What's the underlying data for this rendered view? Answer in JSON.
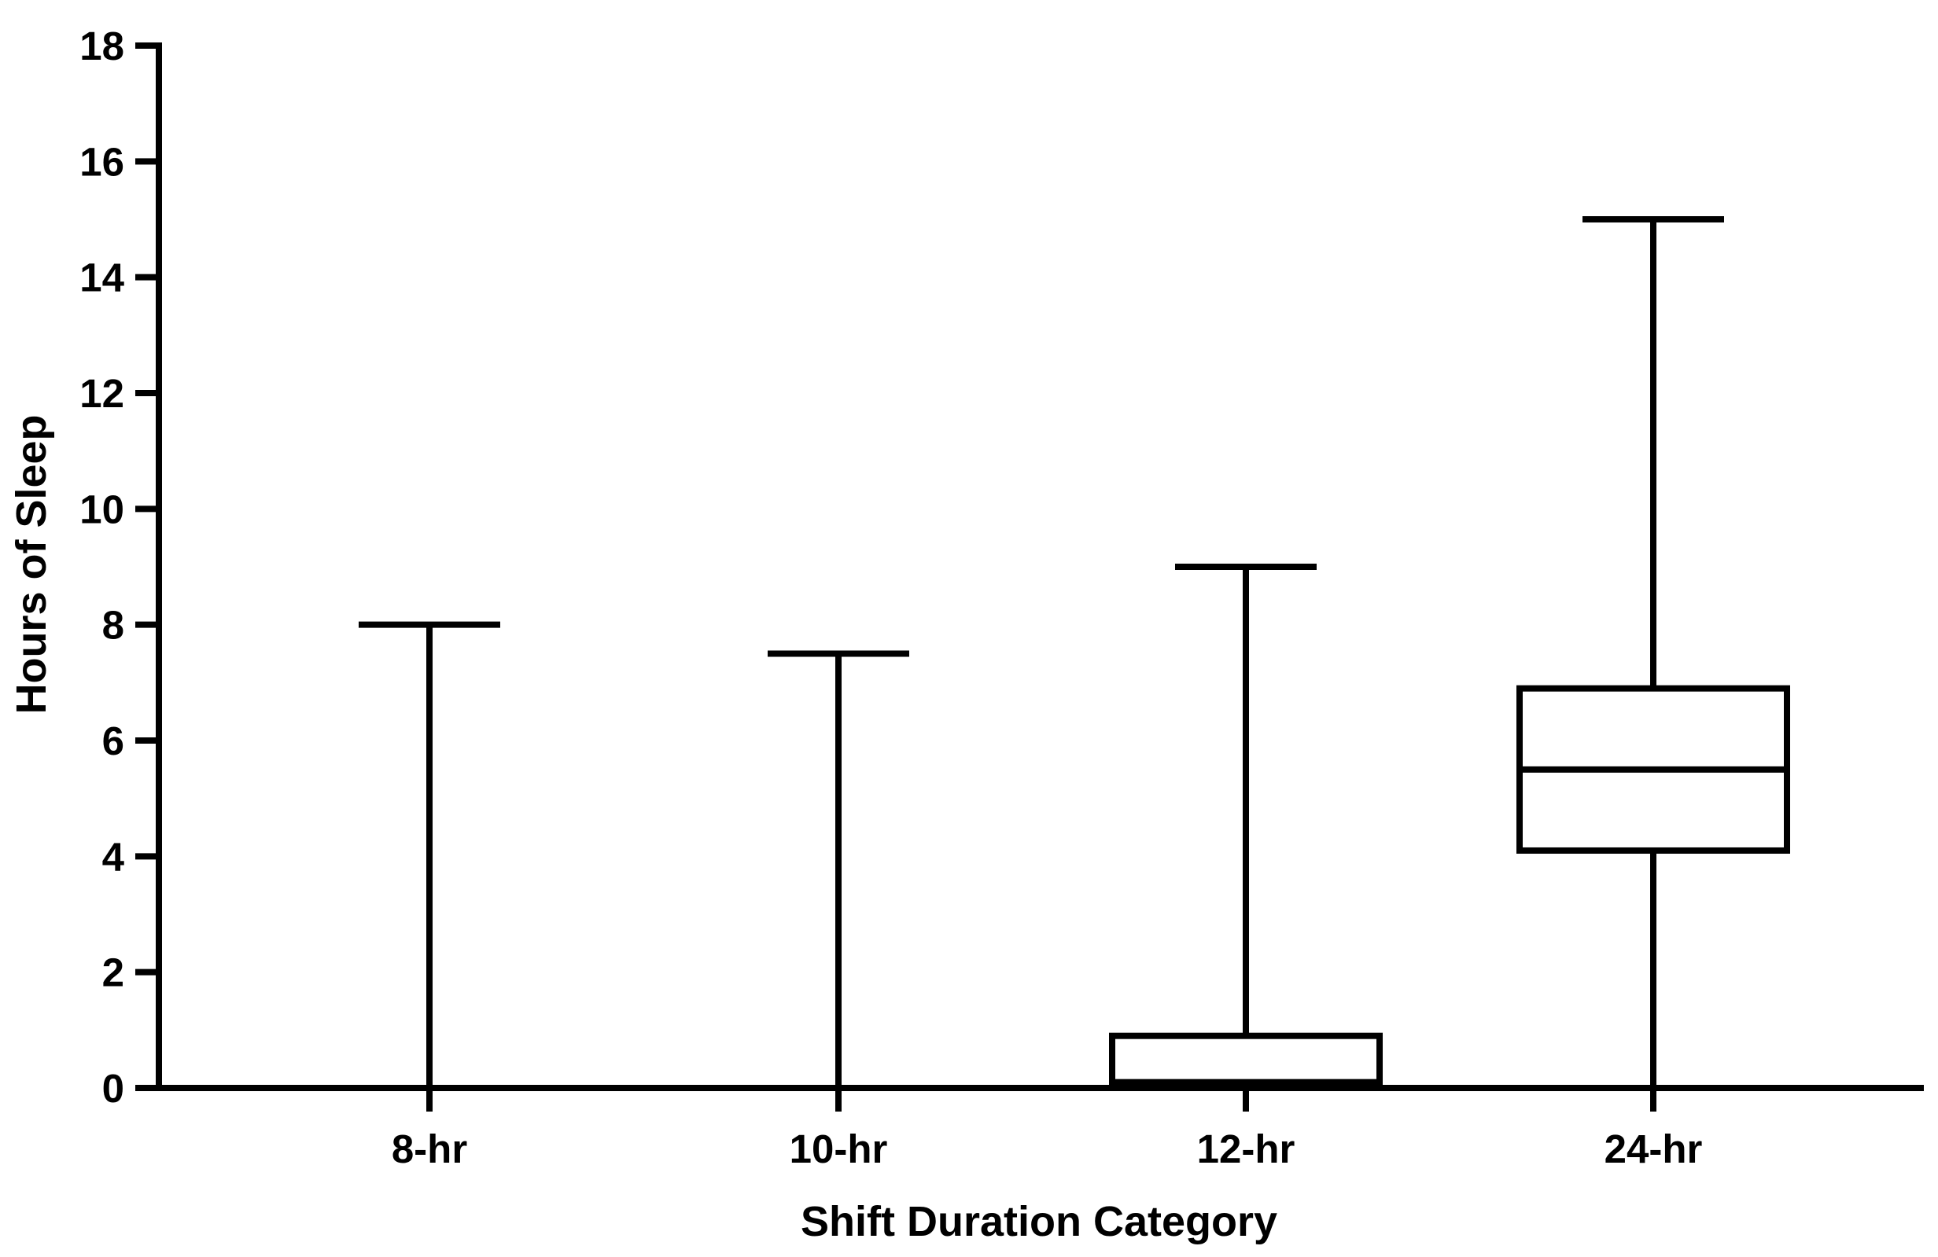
{
  "chart_data": {
    "type": "box",
    "title": "",
    "xlabel": "Shift Duration Category",
    "ylabel": "Hours of Sleep",
    "ylim": [
      0,
      18
    ],
    "yticks": [
      "0",
      "2",
      "4",
      "6",
      "8",
      "10",
      "12",
      "14",
      "16",
      "18"
    ],
    "categories": [
      "8-hr",
      "10-hr",
      "12-hr",
      "24-hr"
    ],
    "boxes": [
      {
        "category": "8-hr",
        "min": 0,
        "q1": 0,
        "median": 0,
        "q3": 0,
        "max": 8
      },
      {
        "category": "10-hr",
        "min": 0,
        "q1": 0,
        "median": 0,
        "q3": 0,
        "max": 7.5
      },
      {
        "category": "12-hr",
        "min": 0,
        "q1": 0.1,
        "median": 0.1,
        "q3": 0.9,
        "max": 9
      },
      {
        "category": "24-hr",
        "min": 0,
        "q1": 4.1,
        "median": 5.5,
        "q3": 6.9,
        "max": 15
      }
    ],
    "grid": false,
    "colors": {
      "stroke": "#000000",
      "box_fill": "#ffffff"
    }
  }
}
